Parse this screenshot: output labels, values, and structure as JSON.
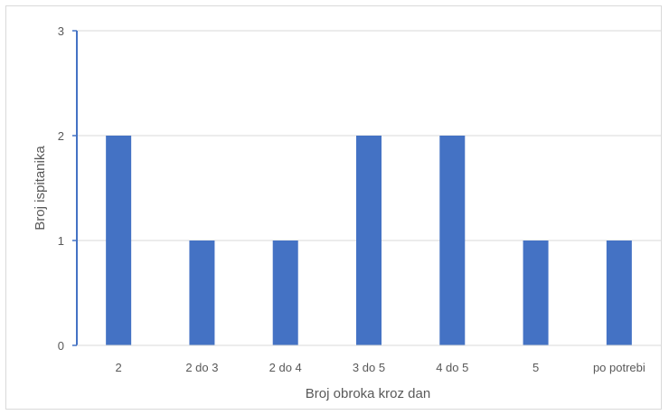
{
  "chart_data": {
    "type": "bar",
    "title": "",
    "xlabel": "Broj obroka kroz dan",
    "ylabel": "Broj ispitanika",
    "categories": [
      "2",
      "2 do 3",
      "2 do 4",
      "3 do 5",
      "4 do 5",
      "5",
      "po potrebi"
    ],
    "values": [
      2,
      1,
      1,
      2,
      2,
      1,
      1
    ],
    "ylim": [
      0,
      3
    ],
    "yticks": [
      "0",
      "1",
      "2",
      "3"
    ],
    "grid": true,
    "legend": "none",
    "bar_color": "#4472C4",
    "axis_color": "#4472C4",
    "grid_color": "#d9d9d9"
  }
}
